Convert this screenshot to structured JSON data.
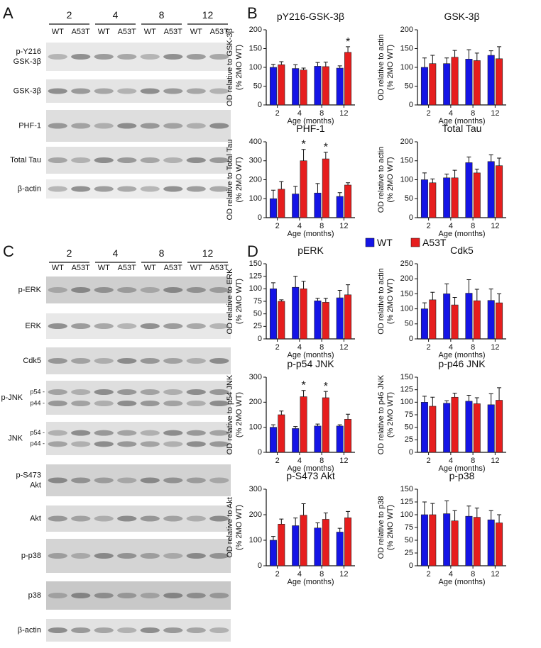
{
  "panels": [
    "A",
    "B",
    "C",
    "D"
  ],
  "legend": [
    {
      "name": "WT",
      "color": "#1414e6"
    },
    {
      "name": "A53T",
      "color": "#e61e1e"
    }
  ],
  "blots": [
    {
      "groups": [
        "2",
        "4",
        "8",
        "12"
      ],
      "lanes": [
        "WT",
        "A53T",
        "WT",
        "A53T",
        "WT",
        "A53T",
        "WT",
        "A53T"
      ],
      "rows": [
        {
          "label": [
            "p-Y216",
            "GSK-3β"
          ]
        },
        {
          "label": [
            "GSK-3β"
          ]
        },
        {
          "label": [
            "PHF-1"
          ]
        },
        {
          "label": [
            "Total Tau"
          ]
        },
        {
          "label": [
            "β-actin"
          ]
        }
      ]
    },
    {
      "groups": [
        "2",
        "4",
        "8",
        "12"
      ],
      "lanes": [
        "WT",
        "A53T",
        "WT",
        "A53T",
        "WT",
        "A53T",
        "WT",
        "A53T"
      ],
      "rows": [
        {
          "label": [
            "p-ERK"
          ]
        },
        {
          "label": [
            "ERK"
          ]
        },
        {
          "label": [
            "Cdk5"
          ]
        },
        {
          "label": [
            "p-JNK"
          ],
          "sub": [
            "p54 -",
            "p44 -"
          ]
        },
        {
          "label": [
            "JNK"
          ],
          "sub": [
            "p54 -",
            "p44 -"
          ]
        },
        {
          "label": [
            "p-S473",
            "Akt"
          ]
        },
        {
          "label": [
            "Akt"
          ]
        },
        {
          "label": [
            "p-p38"
          ]
        },
        {
          "label": [
            "p38"
          ]
        },
        {
          "label": [
            "β-actin"
          ]
        }
      ]
    }
  ],
  "chart_data": [
    {
      "type": "bar",
      "title": "pY216-GSK-3β",
      "ylabel": [
        "OD relative to GSK-3β",
        "(% 2MO WT)"
      ],
      "xlabel": "Age (months)",
      "categories": [
        "2",
        "4",
        "8",
        "12"
      ],
      "ylim": [
        0,
        200
      ],
      "yticks": [
        0,
        50,
        100,
        150,
        200
      ],
      "series": [
        {
          "values": [
            100,
            97,
            103,
            98
          ],
          "errors": [
            8,
            10,
            10,
            6
          ]
        },
        {
          "values": [
            107,
            93,
            102,
            140
          ],
          "errors": [
            8,
            5,
            12,
            15
          ],
          "markers": [
            null,
            null,
            null,
            "*"
          ]
        }
      ]
    },
    {
      "type": "bar",
      "title": "GSK-3β",
      "ylabel": [
        "OD relative to actin",
        "(% 2MO WT)"
      ],
      "xlabel": "Age (months)",
      "categories": [
        "2",
        "4",
        "8",
        "12"
      ],
      "ylim": [
        0,
        200
      ],
      "yticks": [
        0,
        50,
        100,
        150,
        200
      ],
      "series": [
        {
          "values": [
            100,
            110,
            122,
            132
          ],
          "errors": [
            25,
            15,
            25,
            12
          ]
        },
        {
          "values": [
            110,
            127,
            118,
            123
          ],
          "errors": [
            22,
            18,
            20,
            32
          ]
        }
      ]
    },
    {
      "type": "bar",
      "title": "PHF-1",
      "ylabel": [
        "OD relative to Total Tau",
        "(% 2MO WT)"
      ],
      "xlabel": "Age (months)",
      "categories": [
        "2",
        "4",
        "8",
        "12"
      ],
      "ylim": [
        0,
        400
      ],
      "yticks": [
        0,
        100,
        200,
        300,
        400
      ],
      "series": [
        {
          "values": [
            100,
            125,
            130,
            112
          ],
          "errors": [
            45,
            40,
            50,
            20
          ]
        },
        {
          "values": [
            150,
            300,
            310,
            172
          ],
          "errors": [
            40,
            60,
            35,
            12
          ],
          "markers": [
            null,
            "*",
            "*",
            null
          ]
        }
      ]
    },
    {
      "type": "bar",
      "title": "Total Tau",
      "ylabel": [
        "OD relative to actin",
        "(% 2MO WT)"
      ],
      "xlabel": "Age (months)",
      "categories": [
        "2",
        "4",
        "8",
        "12"
      ],
      "ylim": [
        0,
        200
      ],
      "yticks": [
        0,
        50,
        100,
        150,
        200
      ],
      "series": [
        {
          "values": [
            100,
            105,
            145,
            148
          ],
          "errors": [
            18,
            10,
            15,
            18
          ]
        },
        {
          "values": [
            92,
            105,
            118,
            137
          ],
          "errors": [
            10,
            20,
            10,
            20
          ]
        }
      ]
    },
    {
      "type": "bar",
      "title": "pERK",
      "ylabel": [
        "OD relative to ERK",
        "(% 2MO WT)"
      ],
      "xlabel": "Age (months)",
      "categories": [
        "2",
        "4",
        "8",
        "12"
      ],
      "ylim": [
        0,
        150
      ],
      "yticks": [
        0,
        25,
        50,
        75,
        100,
        125,
        150
      ],
      "series": [
        {
          "values": [
            100,
            103,
            76,
            82
          ],
          "errors": [
            12,
            22,
            5,
            15
          ]
        },
        {
          "values": [
            75,
            100,
            73,
            88
          ],
          "errors": [
            3,
            15,
            8,
            20
          ]
        }
      ]
    },
    {
      "type": "bar",
      "title": "Cdk5",
      "ylabel": [
        "OD relative to actin",
        "(% 2MO WT)"
      ],
      "xlabel": "Age (months)",
      "categories": [
        "2",
        "4",
        "8",
        "12"
      ],
      "ylim": [
        0,
        250
      ],
      "yticks": [
        0,
        50,
        100,
        150,
        200,
        250
      ],
      "series": [
        {
          "values": [
            100,
            150,
            152,
            128
          ],
          "errors": [
            20,
            33,
            45,
            38
          ]
        },
        {
          "values": [
            130,
            113,
            127,
            120
          ],
          "errors": [
            25,
            25,
            38,
            30
          ]
        }
      ]
    },
    {
      "type": "bar",
      "title": "p-p54 JNK",
      "ylabel": [
        "OD relative to p54 JNK",
        "(% 2MO WT)"
      ],
      "xlabel": "Age (months)",
      "categories": [
        "2",
        "4",
        "8",
        "12"
      ],
      "ylim": [
        0,
        300
      ],
      "yticks": [
        0,
        100,
        200,
        300
      ],
      "series": [
        {
          "values": [
            100,
            95,
            105,
            105
          ],
          "errors": [
            10,
            8,
            8,
            5
          ]
        },
        {
          "values": [
            150,
            222,
            218,
            132
          ],
          "errors": [
            15,
            25,
            25,
            20
          ],
          "markers": [
            null,
            "*",
            "*",
            null
          ]
        }
      ]
    },
    {
      "type": "bar",
      "title": "p-p46 JNK",
      "ylabel": [
        "OD relative to p46 JNK",
        "(% 2MO WT)"
      ],
      "xlabel": "Age (months)",
      "categories": [
        "2",
        "4",
        "8",
        "12"
      ],
      "ylim": [
        0,
        150
      ],
      "yticks": [
        0,
        25,
        50,
        75,
        100,
        125,
        150
      ],
      "series": [
        {
          "values": [
            100,
            98,
            102,
            95
          ],
          "errors": [
            12,
            5,
            12,
            22
          ]
        },
        {
          "values": [
            92,
            110,
            97,
            104
          ],
          "errors": [
            18,
            8,
            12,
            25
          ]
        }
      ]
    },
    {
      "type": "bar",
      "title": "p-S473 Akt",
      "ylabel": [
        "OD relative to Akt",
        "(% 2MO WT)"
      ],
      "xlabel": "Age (months)",
      "categories": [
        "2",
        "4",
        "8",
        "12"
      ],
      "ylim": [
        0,
        300
      ],
      "yticks": [
        0,
        100,
        200,
        300
      ],
      "series": [
        {
          "values": [
            100,
            157,
            148,
            132
          ],
          "errors": [
            15,
            30,
            20,
            15
          ]
        },
        {
          "values": [
            163,
            198,
            182,
            188
          ],
          "errors": [
            20,
            45,
            25,
            25
          ]
        }
      ]
    },
    {
      "type": "bar",
      "title": "p-p38",
      "ylabel": [
        "OD relative to p38",
        "(% 2MO WT)"
      ],
      "xlabel": "Age (months)",
      "categories": [
        "2",
        "4",
        "8",
        "12"
      ],
      "ylim": [
        0,
        150
      ],
      "yticks": [
        0,
        25,
        50,
        75,
        100,
        125,
        150
      ],
      "series": [
        {
          "values": [
            100,
            102,
            97,
            90
          ],
          "errors": [
            25,
            25,
            20,
            18
          ]
        },
        {
          "values": [
            100,
            88,
            95,
            84
          ],
          "errors": [
            22,
            20,
            18,
            16
          ]
        }
      ]
    }
  ]
}
